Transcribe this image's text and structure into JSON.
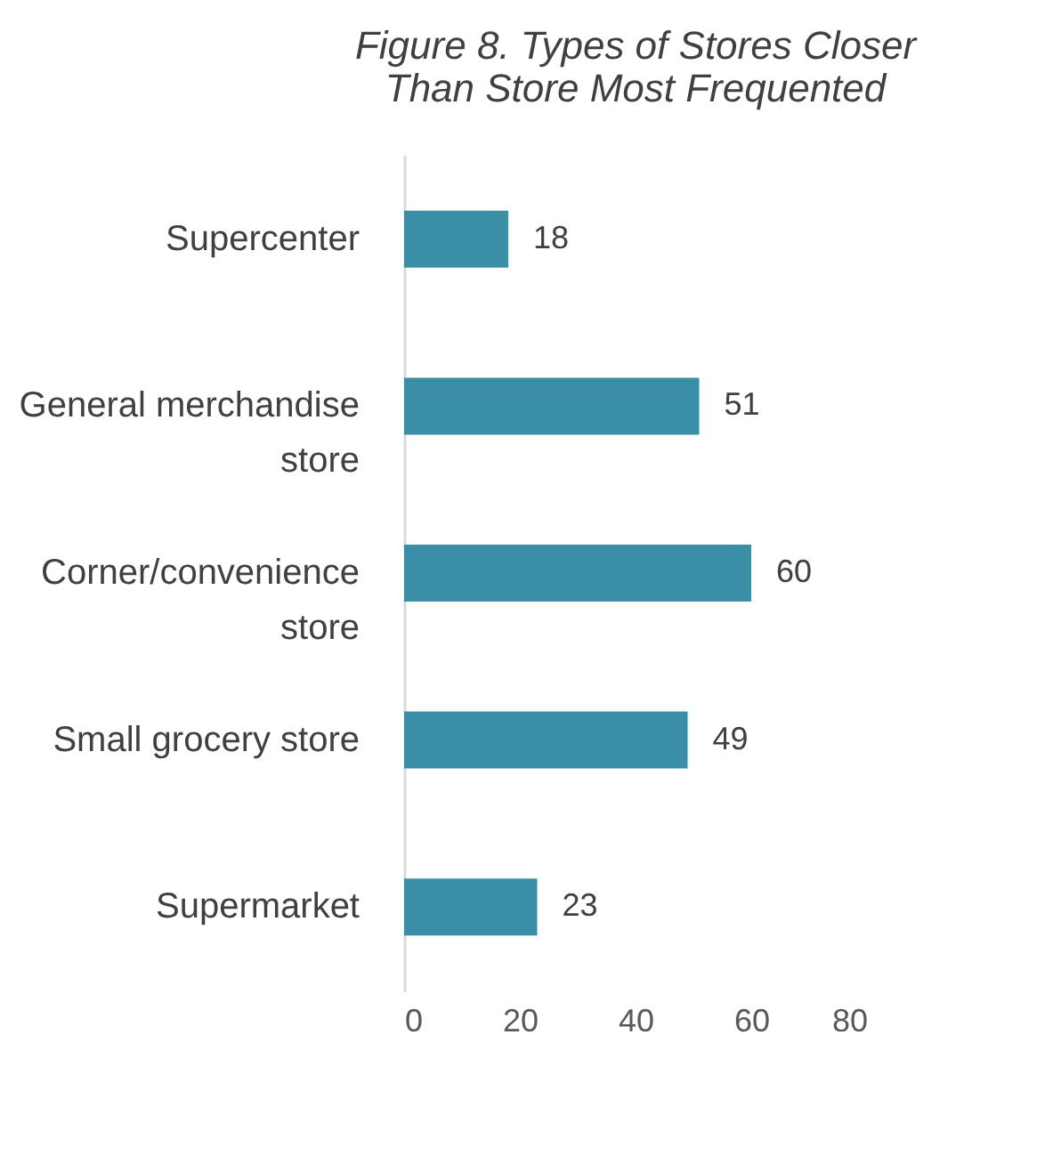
{
  "chart_data": {
    "type": "bar",
    "orientation": "horizontal",
    "title": "Figure 8. Types of Stores Closer Than Store Most Frequented",
    "categories": [
      "Supercenter",
      "General merchandise store",
      "Corner/convenience store",
      "Small grocery store",
      "Supermarket"
    ],
    "values": [
      18,
      51,
      60,
      49,
      23
    ],
    "color": "#3a8fa6",
    "xlim": [
      0,
      80
    ],
    "xticks": [
      0,
      20,
      40,
      60,
      80
    ],
    "grid": false,
    "data_labels": true
  }
}
